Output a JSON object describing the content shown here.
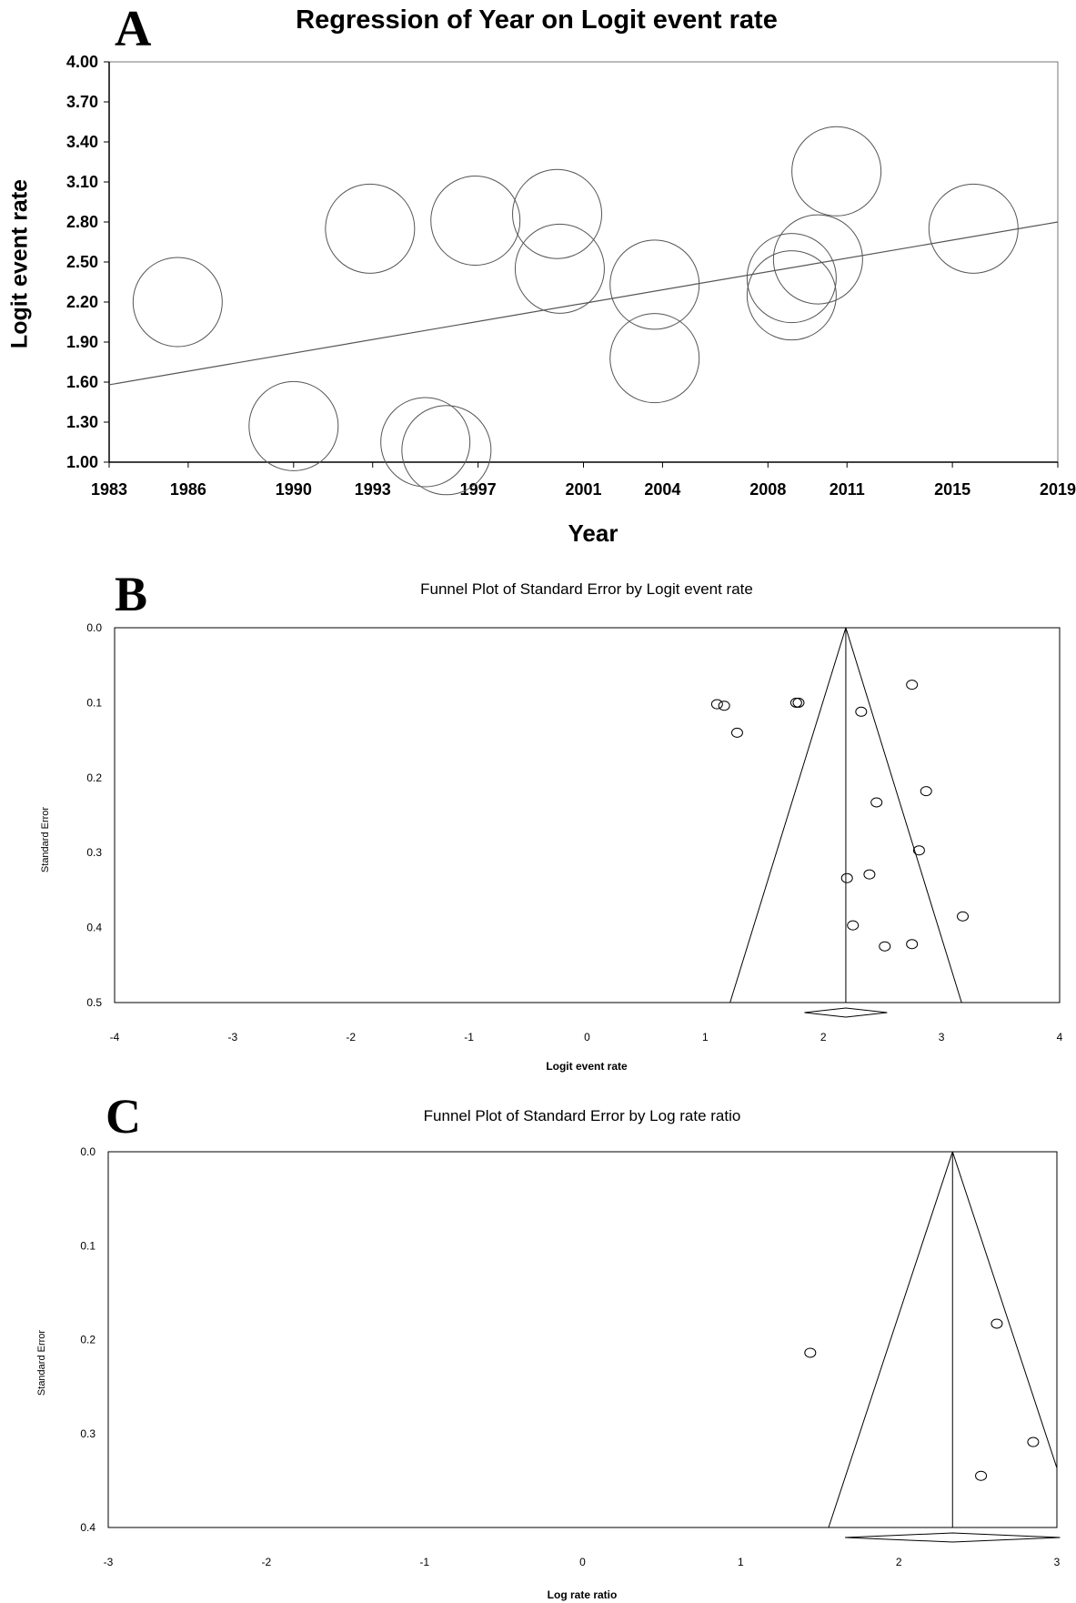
{
  "panels": {
    "a": {
      "letter": "A"
    },
    "b": {
      "letter": "B"
    },
    "c": {
      "letter": "C"
    }
  },
  "chart_data": [
    {
      "id": "A",
      "type": "scatter",
      "title": "Regression of Year on Logit event rate",
      "xlabel": "Year",
      "ylabel": "Logit event rate",
      "xlim": [
        1983,
        2019
      ],
      "ylim": [
        1.0,
        4.0
      ],
      "x_ticks": [
        1983,
        1986,
        1990,
        1993,
        1997,
        2001,
        2004,
        2008,
        2011,
        2015,
        2019
      ],
      "y_ticks": [
        "1.00",
        "1.30",
        "1.60",
        "1.90",
        "2.20",
        "2.50",
        "2.80",
        "3.10",
        "3.40",
        "3.70",
        "4.00"
      ],
      "bubble_style": "open circles sized by study weight",
      "points": [
        {
          "x": 1985.6,
          "y": 2.2
        },
        {
          "x": 1990.0,
          "y": 1.27
        },
        {
          "x": 1992.9,
          "y": 2.75
        },
        {
          "x": 1995.0,
          "y": 1.15
        },
        {
          "x": 1995.8,
          "y": 1.09
        },
        {
          "x": 1996.9,
          "y": 2.81
        },
        {
          "x": 2000.0,
          "y": 2.86
        },
        {
          "x": 2000.1,
          "y": 2.45
        },
        {
          "x": 2003.7,
          "y": 2.33
        },
        {
          "x": 2003.7,
          "y": 1.78
        },
        {
          "x": 2008.9,
          "y": 2.38
        },
        {
          "x": 2008.9,
          "y": 2.25
        },
        {
          "x": 2009.9,
          "y": 2.52
        },
        {
          "x": 2010.6,
          "y": 3.18
        },
        {
          "x": 2015.8,
          "y": 2.75
        }
      ],
      "regression_line": {
        "x": [
          1983,
          2019
        ],
        "y": [
          1.58,
          2.8
        ]
      }
    },
    {
      "id": "B",
      "type": "scatter",
      "title": "Funnel Plot of Standard Error by Logit event rate",
      "xlabel": "Logit event rate",
      "ylabel": "Standard Error",
      "xlim": [
        -4,
        4
      ],
      "ylim": [
        0.0,
        0.5
      ],
      "y_inverted": true,
      "x_ticks": [
        "-4",
        "-3",
        "-2",
        "-1",
        "0",
        "1",
        "2",
        "3",
        "4"
      ],
      "y_ticks": [
        "0.0",
        "0.1",
        "0.2",
        "0.3",
        "0.4",
        "0.5"
      ],
      "pooled_estimate": 2.19,
      "points": [
        {
          "x": 1.1,
          "y": 0.102
        },
        {
          "x": 1.16,
          "y": 0.104
        },
        {
          "x": 1.27,
          "y": 0.14
        },
        {
          "x": 1.77,
          "y": 0.1
        },
        {
          "x": 1.79,
          "y": 0.1
        },
        {
          "x": 2.32,
          "y": 0.112
        },
        {
          "x": 2.75,
          "y": 0.076
        },
        {
          "x": 2.87,
          "y": 0.218
        },
        {
          "x": 2.45,
          "y": 0.233
        },
        {
          "x": 2.81,
          "y": 0.297
        },
        {
          "x": 2.2,
          "y": 0.334
        },
        {
          "x": 2.39,
          "y": 0.329
        },
        {
          "x": 2.25,
          "y": 0.397
        },
        {
          "x": 3.18,
          "y": 0.385
        },
        {
          "x": 2.52,
          "y": 0.425
        },
        {
          "x": 2.75,
          "y": 0.422
        }
      ],
      "diamond": {
        "center": 2.19,
        "lower": 1.84,
        "upper": 2.54
      }
    },
    {
      "id": "C",
      "type": "scatter",
      "title": "Funnel Plot of Standard Error by Log rate ratio",
      "xlabel": "Log rate ratio",
      "ylabel": "Standard Error",
      "xlim": [
        -3,
        3
      ],
      "ylim": [
        0.0,
        0.4
      ],
      "y_inverted": true,
      "x_ticks": [
        "-3",
        "-2",
        "-1",
        "0",
        "1",
        "2",
        "3"
      ],
      "y_ticks": [
        "0.0",
        "0.1",
        "0.2",
        "0.3",
        "0.4"
      ],
      "pooled_estimate": 2.34,
      "points": [
        {
          "x": 1.44,
          "y": 0.214
        },
        {
          "x": 2.62,
          "y": 0.183
        },
        {
          "x": 2.85,
          "y": 0.309
        },
        {
          "x": 2.52,
          "y": 0.345
        }
      ],
      "diamond": {
        "center": 2.34,
        "lower": 1.66,
        "upper": 3.02
      }
    }
  ]
}
